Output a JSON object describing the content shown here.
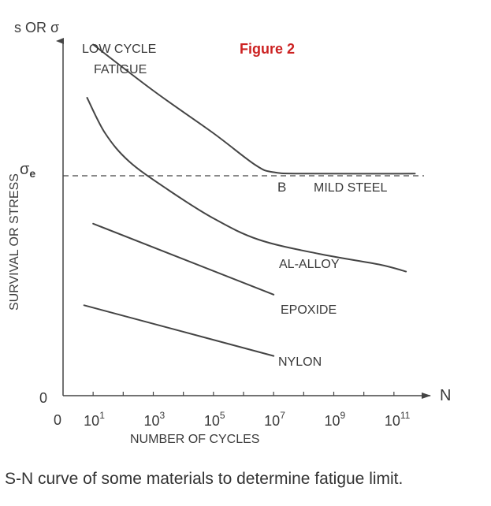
{
  "caption": "S-N curve of some materials to determine fatigue limit.",
  "chart_data": {
    "type": "line",
    "title": "Figure 2",
    "title_color": "#cc2222",
    "xlabel": "NUMBER OF CYCLES",
    "ylabel": "SURVIVAL OR STRESS",
    "y_axis_title": "s OR σ",
    "x_axis_symbol": "N",
    "x_scale": "log",
    "x_ticks": [
      {
        "exp": 1,
        "base": "10",
        "sup": "1"
      },
      {
        "exp": 3,
        "base": "10",
        "sup": "3"
      },
      {
        "exp": 5,
        "base": "10",
        "sup": "5"
      },
      {
        "exp": 7,
        "base": "10",
        "sup": "7"
      },
      {
        "exp": 9,
        "base": "10",
        "sup": "9"
      },
      {
        "exp": 11,
        "base": "10",
        "sup": "11"
      }
    ],
    "xlim": [
      0,
      12
    ],
    "ylim": [
      0,
      100
    ],
    "x_zero_label": "0",
    "y_zero_label": "0",
    "fatigue_limit": {
      "label": "σe",
      "symbol": "σ",
      "subscript": "e",
      "y": 62
    },
    "annotations": {
      "low_cycle_line1": "LOW CYCLE",
      "low_cycle_line2": "FATIGUE",
      "point_b": "B"
    },
    "series": [
      {
        "name": "MILD STEEL",
        "points": [
          [
            1.0,
            99
          ],
          [
            3.0,
            86
          ],
          [
            5.0,
            74
          ],
          [
            6.4,
            65
          ],
          [
            7.0,
            63
          ],
          [
            8.0,
            62.6
          ],
          [
            11.7,
            62.6
          ]
        ]
      },
      {
        "name": "AL-ALLOY",
        "points": [
          [
            0.8,
            84
          ],
          [
            1.4,
            74
          ],
          [
            2.2,
            66
          ],
          [
            3.5,
            58
          ],
          [
            5.0,
            50
          ],
          [
            6.5,
            44
          ],
          [
            8.5,
            40
          ],
          [
            10.5,
            37
          ],
          [
            11.4,
            35
          ]
        ]
      },
      {
        "name": "EPOXIDE",
        "points": [
          [
            1.0,
            48.5
          ],
          [
            7.0,
            28.5
          ]
        ]
      },
      {
        "name": "NYLON",
        "points": [
          [
            0.7,
            25.5
          ],
          [
            7.0,
            11.2
          ]
        ]
      }
    ]
  }
}
